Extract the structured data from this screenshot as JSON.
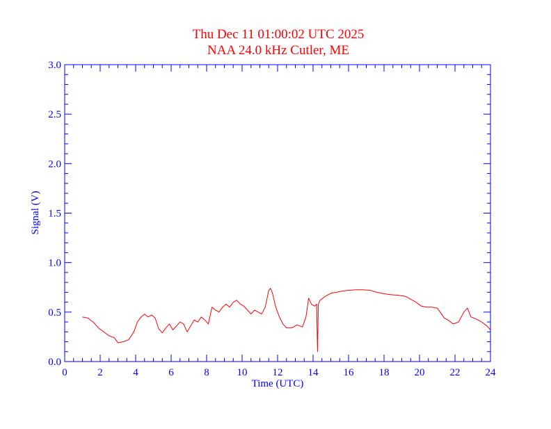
{
  "chart_data": {
    "type": "line",
    "title": "Thu Dec 11 01:00:02 UTC 2025",
    "subtitle": "NAA 24.0 kHz Cutler, ME",
    "xlabel": "Time (UTC)",
    "ylabel": "Signal (V)",
    "xlim": [
      0,
      24
    ],
    "ylim": [
      0.0,
      3.0
    ],
    "x_ticks": [
      "0",
      "2",
      "4",
      "6",
      "8",
      "10",
      "12",
      "14",
      "16",
      "18",
      "20",
      "22",
      "24"
    ],
    "y_ticks": [
      "0.0",
      "0.5",
      "1.0",
      "1.5",
      "2.0",
      "2.5",
      "3.0"
    ],
    "grid": false,
    "colors": {
      "axes": "#0000ff",
      "title": "#ff0000",
      "series": "#ff0000"
    },
    "series": [
      {
        "x": [
          1.0,
          1.3,
          1.6,
          1.9,
          2.2,
          2.5,
          2.8,
          3.0,
          3.3,
          3.6,
          3.9,
          4.1,
          4.3,
          4.5,
          4.7,
          4.9,
          5.1,
          5.3,
          5.5,
          5.7,
          5.9,
          6.1,
          6.3,
          6.5,
          6.7,
          6.9,
          7.1,
          7.3,
          7.5,
          7.7,
          7.9,
          8.1,
          8.3,
          8.5,
          8.7,
          8.9,
          9.1,
          9.3,
          9.5,
          9.7,
          9.9,
          10.1,
          10.3,
          10.5,
          10.7,
          10.9,
          11.1,
          11.3,
          11.5,
          11.6,
          11.7,
          11.9,
          12.1,
          12.3,
          12.5,
          12.8,
          13.1,
          13.4,
          13.6,
          13.75,
          13.9,
          14.1,
          14.2,
          14.25,
          14.3,
          14.4,
          14.7,
          15.0,
          15.3,
          15.6,
          16.0,
          16.4,
          16.8,
          17.2,
          17.6,
          18.0,
          18.4,
          18.8,
          19.2,
          19.5,
          19.8,
          20.1,
          20.4,
          20.7,
          21.0,
          21.2,
          21.4,
          21.6,
          21.9,
          22.2,
          22.5,
          22.7,
          22.9,
          23.2,
          23.5,
          23.8,
          24.0
        ],
        "y": [
          0.45,
          0.44,
          0.4,
          0.34,
          0.3,
          0.26,
          0.24,
          0.19,
          0.2,
          0.22,
          0.3,
          0.4,
          0.45,
          0.48,
          0.45,
          0.47,
          0.44,
          0.33,
          0.29,
          0.34,
          0.38,
          0.32,
          0.36,
          0.4,
          0.38,
          0.3,
          0.36,
          0.42,
          0.4,
          0.45,
          0.42,
          0.38,
          0.55,
          0.52,
          0.5,
          0.55,
          0.58,
          0.55,
          0.6,
          0.62,
          0.58,
          0.56,
          0.52,
          0.48,
          0.52,
          0.5,
          0.48,
          0.55,
          0.72,
          0.74,
          0.7,
          0.55,
          0.45,
          0.38,
          0.34,
          0.34,
          0.37,
          0.35,
          0.45,
          0.64,
          0.58,
          0.56,
          0.58,
          0.1,
          0.58,
          0.62,
          0.66,
          0.69,
          0.7,
          0.71,
          0.72,
          0.725,
          0.725,
          0.72,
          0.7,
          0.685,
          0.675,
          0.67,
          0.66,
          0.63,
          0.6,
          0.56,
          0.55,
          0.55,
          0.54,
          0.49,
          0.44,
          0.42,
          0.38,
          0.4,
          0.5,
          0.54,
          0.45,
          0.43,
          0.4,
          0.36,
          0.32
        ]
      }
    ]
  }
}
